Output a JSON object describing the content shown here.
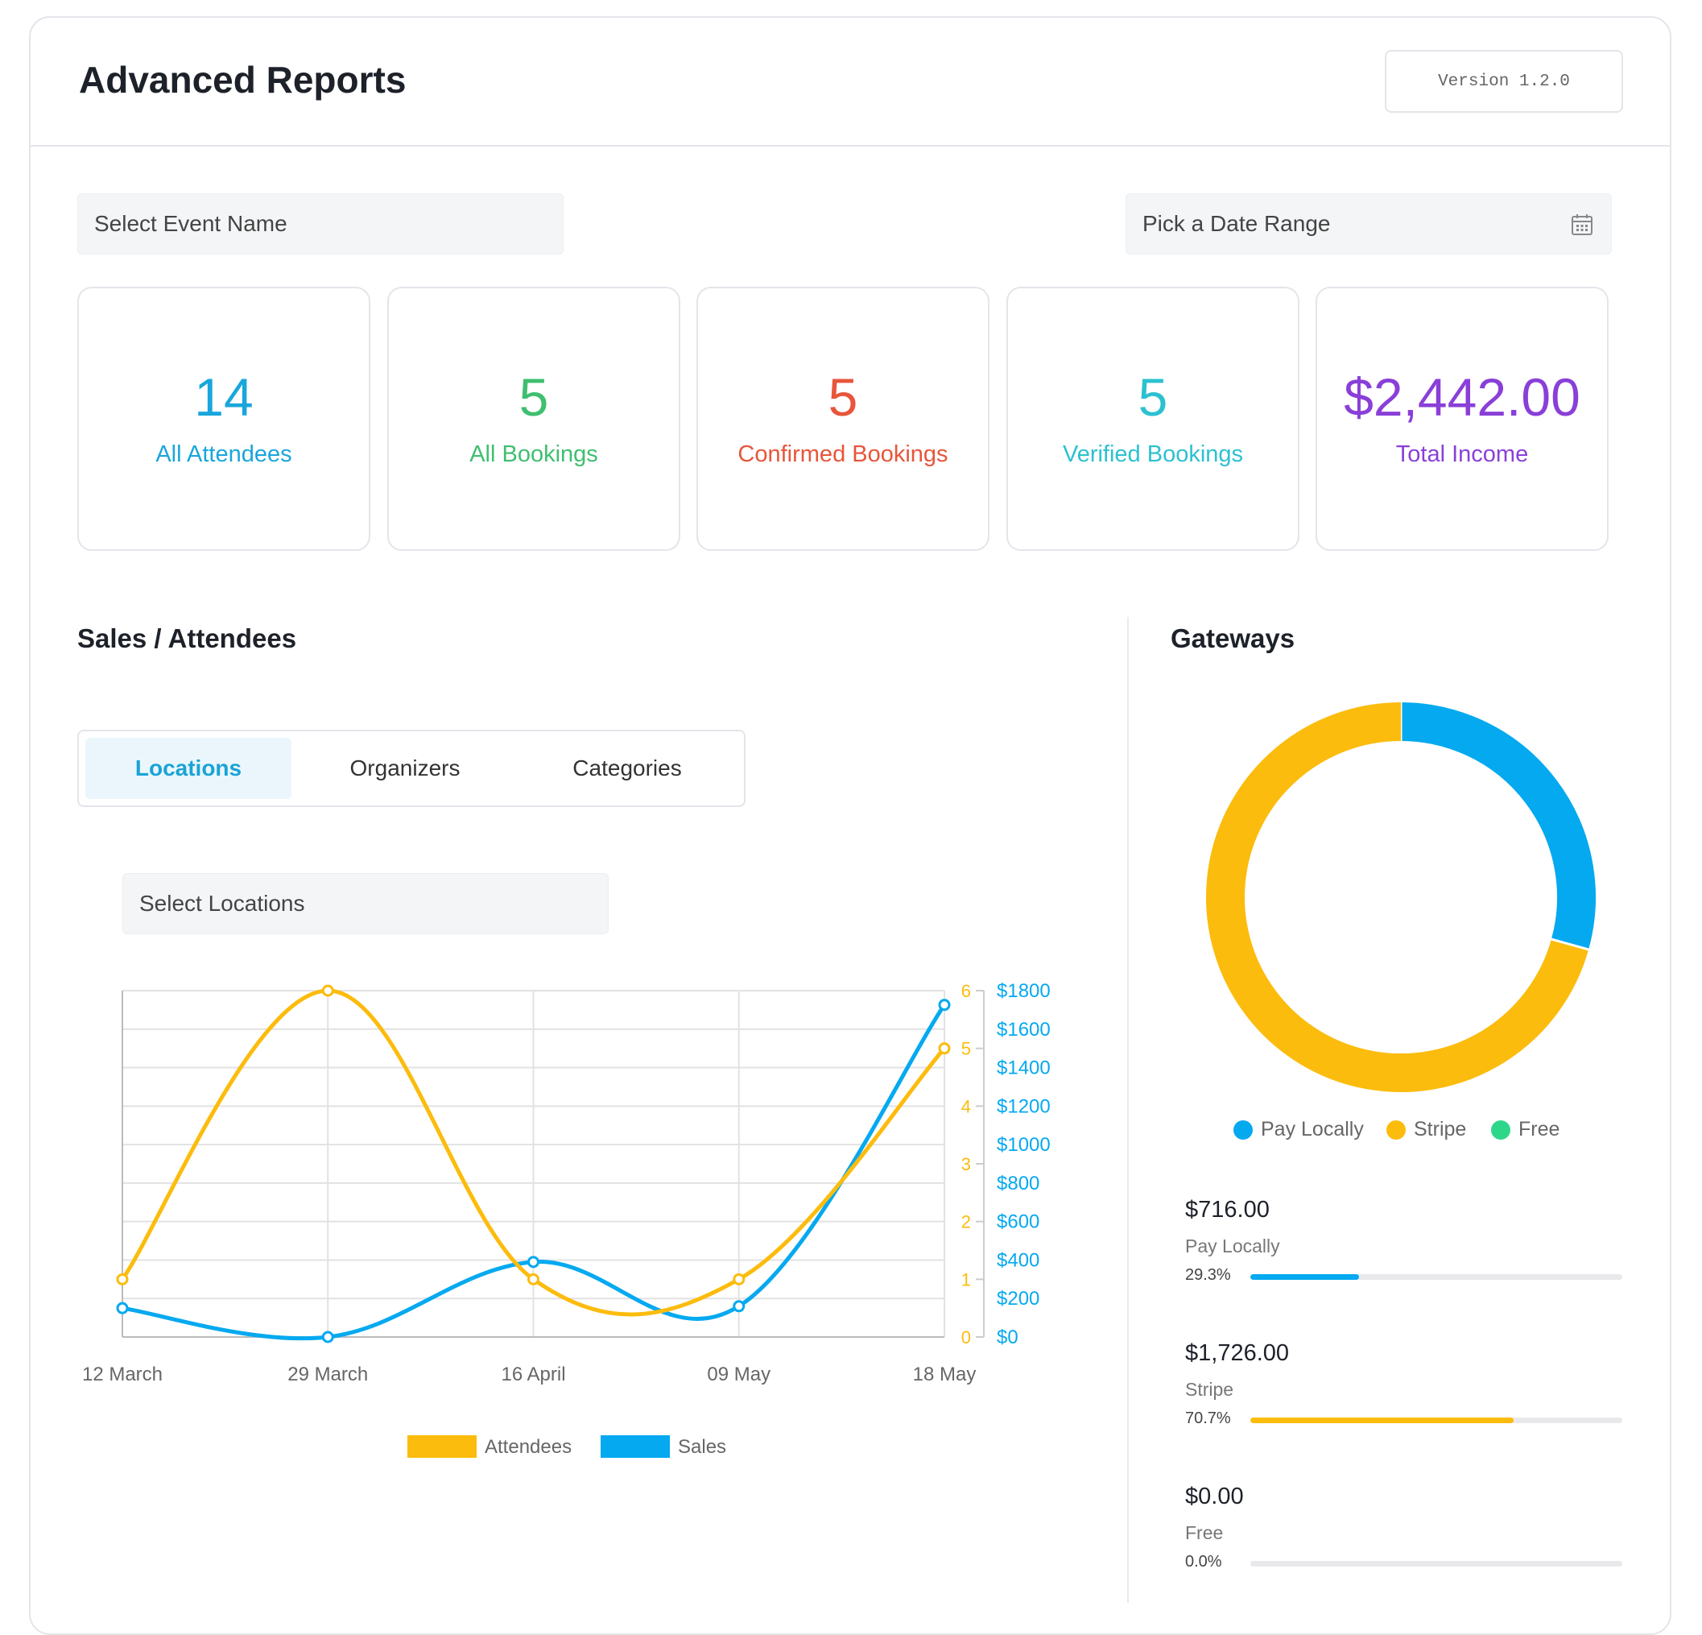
{
  "header": {
    "title": "Advanced Reports",
    "version": "Version 1.2.0"
  },
  "filters": {
    "event_placeholder": "Select Event Name",
    "date_placeholder": "Pick a Date Range"
  },
  "stats": [
    {
      "value": "14",
      "label": "All Attendees",
      "color": "#19a6dc"
    },
    {
      "value": "5",
      "label": "All Bookings",
      "color": "#3fbf6f"
    },
    {
      "value": "5",
      "label": "Confirmed Bookings",
      "color": "#e8553a"
    },
    {
      "value": "5",
      "label": "Verified Bookings",
      "color": "#2cc1d0"
    },
    {
      "value": "$2,442.00",
      "label": "Total Income",
      "color": "#8a3fd8"
    }
  ],
  "sales": {
    "title": "Sales / Attendees",
    "tabs": [
      "Locations",
      "Organizers",
      "Categories"
    ],
    "active_tab": "Locations",
    "locations_placeholder": "Select Locations"
  },
  "chart_data": {
    "type": "line",
    "x": [
      "12 March",
      "29 March",
      "16 April",
      "09 May",
      "18 May"
    ],
    "series": [
      {
        "name": "Attendees",
        "axis": "left",
        "color": "#fcbc0d",
        "values": [
          1,
          6,
          1,
          1,
          5
        ]
      },
      {
        "name": "Sales",
        "axis": "right",
        "color": "#05a9f0",
        "values": [
          150,
          0,
          390,
          160,
          1726
        ]
      }
    ],
    "y_left": {
      "ticks": [
        "0",
        "1",
        "2",
        "3",
        "4",
        "5",
        "6"
      ],
      "range": [
        0,
        6
      ]
    },
    "y_right": {
      "ticks": [
        "$0",
        "$200",
        "$400",
        "$600",
        "$800",
        "$1000",
        "$1200",
        "$1400",
        "$1600",
        "$1800"
      ],
      "range": [
        0,
        1800
      ]
    },
    "grid": true,
    "legend_position": "bottom"
  },
  "gateways": {
    "title": "Gateways",
    "donut": {
      "type": "pie",
      "slices": [
        {
          "name": "Pay Locally",
          "value": 716,
          "color": "#05a9f0"
        },
        {
          "name": "Stripe",
          "value": 1726,
          "color": "#fcbc0d"
        },
        {
          "name": "Free",
          "value": 0,
          "color": "#2ed68a"
        }
      ]
    },
    "legend": [
      {
        "label": "Pay Locally",
        "color": "#05a9f0"
      },
      {
        "label": "Stripe",
        "color": "#fcbc0d"
      },
      {
        "label": "Free",
        "color": "#2ed68a"
      }
    ],
    "items": [
      {
        "amount": "$716.00",
        "name": "Pay Locally",
        "percent": "29.3%",
        "fraction": 0.293,
        "color": "#05a9f0"
      },
      {
        "amount": "$1,726.00",
        "name": "Stripe",
        "percent": "70.7%",
        "fraction": 0.707,
        "color": "#fcbc0d"
      },
      {
        "amount": "$0.00",
        "name": "Free",
        "percent": "0.0%",
        "fraction": 0.0,
        "color": "#2ed68a"
      }
    ]
  }
}
